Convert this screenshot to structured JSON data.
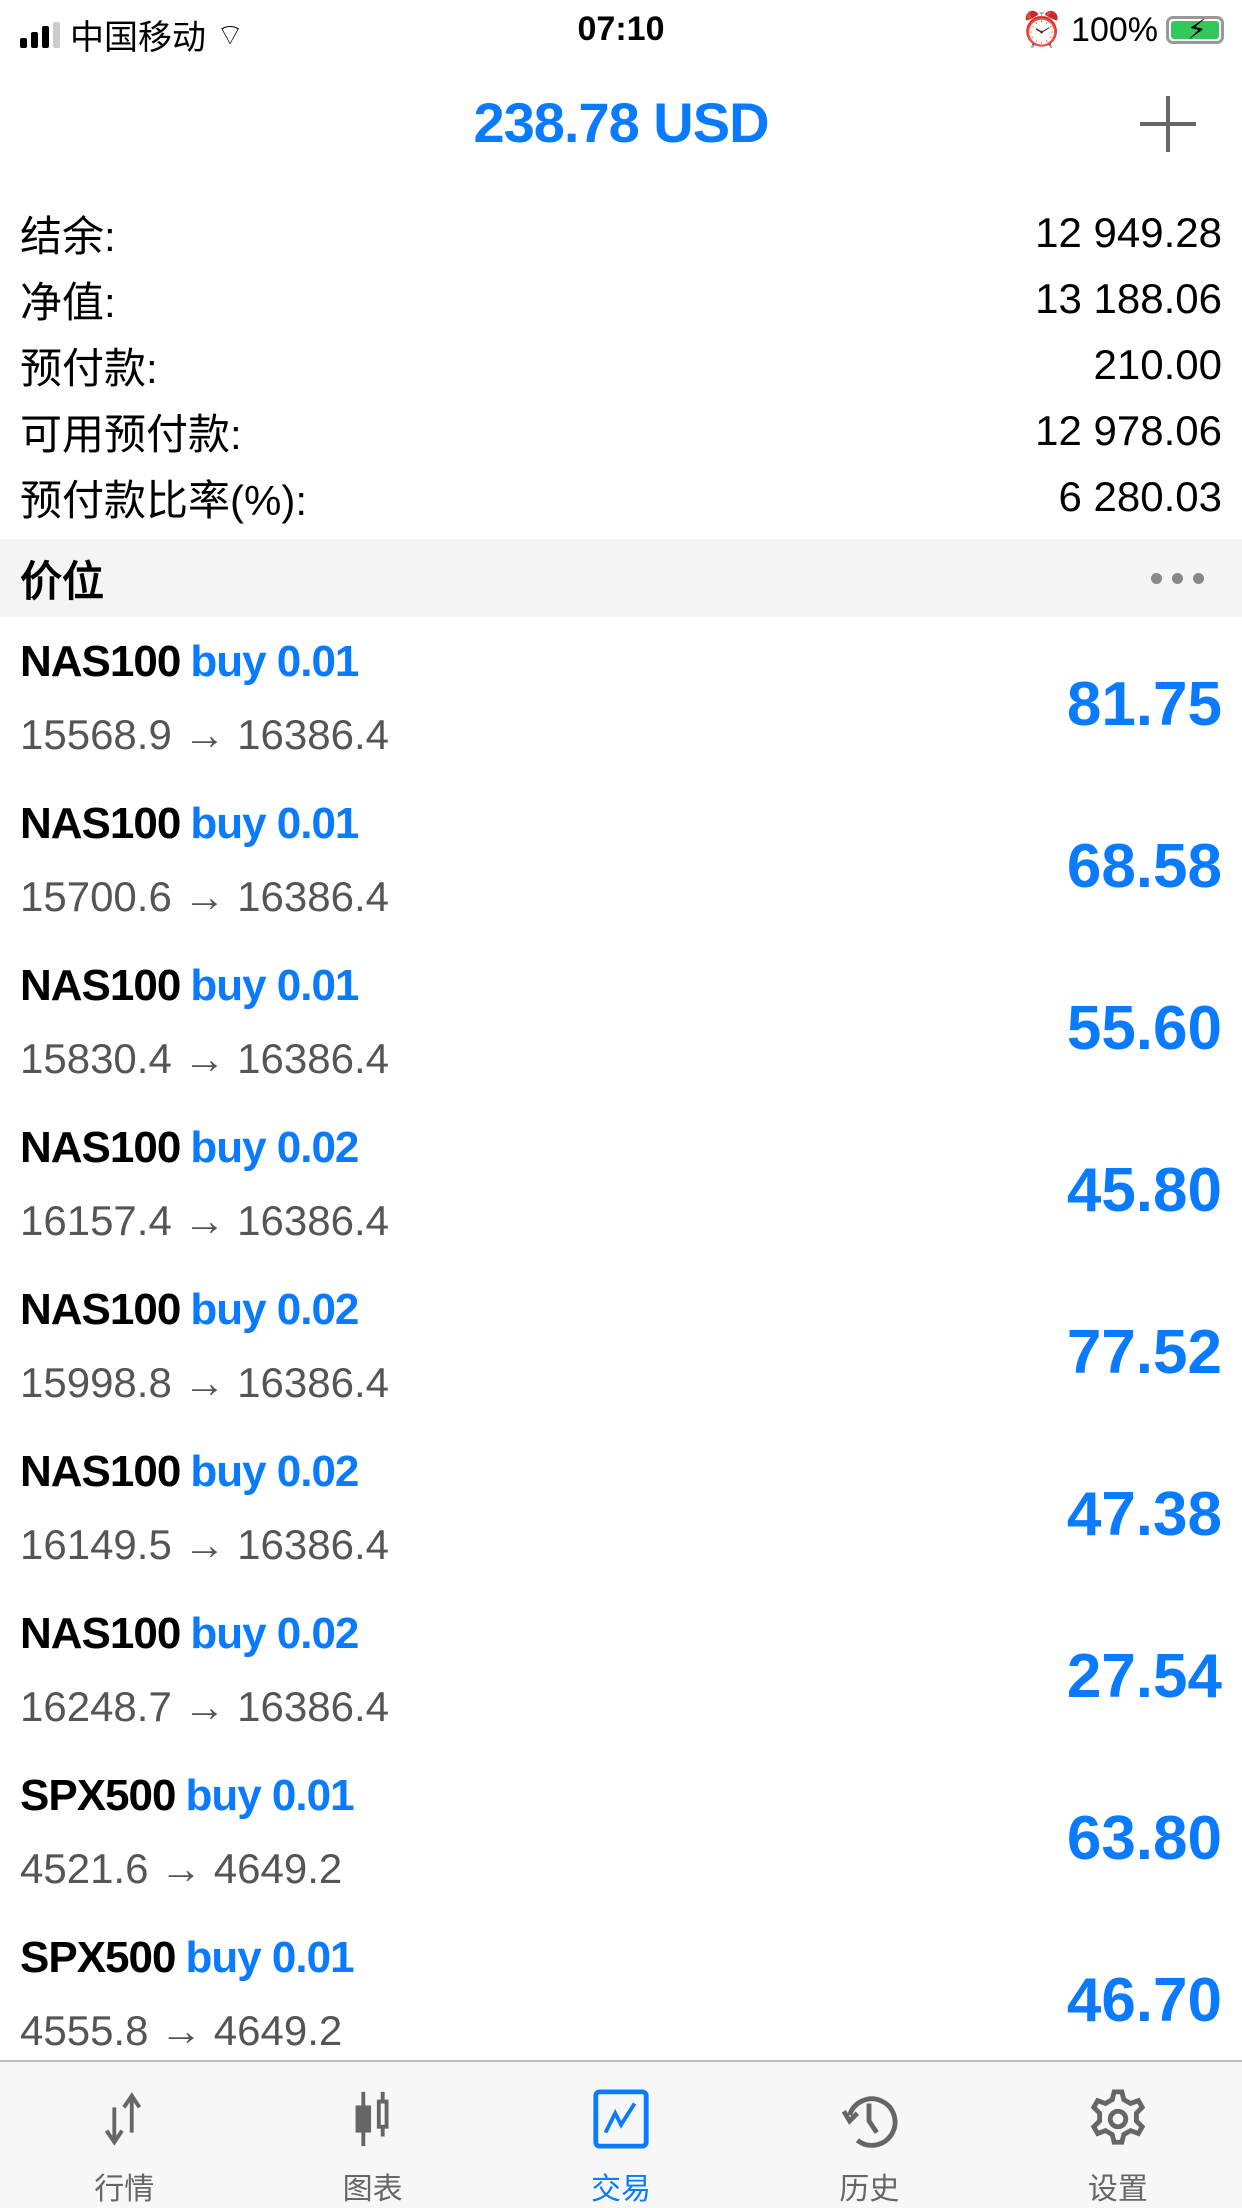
{
  "status": {
    "carrier": "中国移动",
    "time": "07:10",
    "battery": "100%"
  },
  "header": {
    "title": "238.78 USD"
  },
  "summary": [
    {
      "label": "结余:",
      "value": "12 949.28"
    },
    {
      "label": "净值:",
      "value": "13 188.06"
    },
    {
      "label": "预付款:",
      "value": "210.00"
    },
    {
      "label": "可用预付款:",
      "value": "12 978.06"
    },
    {
      "label": "预付款比率(%):",
      "value": "6 280.03"
    }
  ],
  "section": {
    "title": "价位"
  },
  "positions": [
    {
      "symbol": "NAS100",
      "type": "buy 0.01",
      "prices": "15568.9 → 16386.4",
      "profit": "81.75"
    },
    {
      "symbol": "NAS100",
      "type": "buy 0.01",
      "prices": "15700.6 → 16386.4",
      "profit": "68.58"
    },
    {
      "symbol": "NAS100",
      "type": "buy 0.01",
      "prices": "15830.4 → 16386.4",
      "profit": "55.60"
    },
    {
      "symbol": "NAS100",
      "type": "buy 0.02",
      "prices": "16157.4 → 16386.4",
      "profit": "45.80"
    },
    {
      "symbol": "NAS100",
      "type": "buy 0.02",
      "prices": "15998.8 → 16386.4",
      "profit": "77.52"
    },
    {
      "symbol": "NAS100",
      "type": "buy 0.02",
      "prices": "16149.5 → 16386.4",
      "profit": "47.38"
    },
    {
      "symbol": "NAS100",
      "type": "buy 0.02",
      "prices": "16248.7 → 16386.4",
      "profit": "27.54"
    },
    {
      "symbol": "SPX500",
      "type": "buy 0.01",
      "prices": "4521.6 → 4649.2",
      "profit": "63.80"
    },
    {
      "symbol": "SPX500",
      "type": "buy 0.01",
      "prices": "4555.8 → 4649.2",
      "profit": "46.70"
    }
  ],
  "tabs": [
    {
      "label": "行情",
      "icon": "quotes-arrows-icon"
    },
    {
      "label": "图表",
      "icon": "candlestick-icon"
    },
    {
      "label": "交易",
      "icon": "trade-chart-icon",
      "active": true
    },
    {
      "label": "历史",
      "icon": "history-clock-icon"
    },
    {
      "label": "设置",
      "icon": "gear-icon"
    }
  ],
  "colors": {
    "accent": "#0a7aff",
    "battery": "#34c759"
  }
}
